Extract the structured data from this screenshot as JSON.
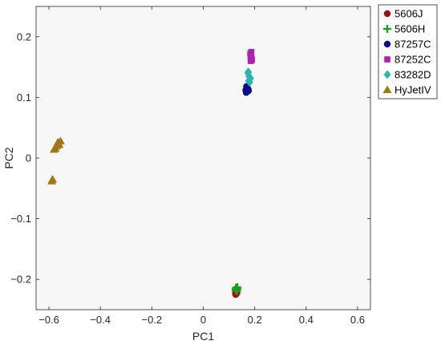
{
  "chart_data": {
    "type": "scatter",
    "title": "",
    "xlabel": "PC1",
    "ylabel": "PC2",
    "xlim": [
      -0.65,
      0.65
    ],
    "ylim": [
      -0.25,
      0.25
    ],
    "xticks": [
      -0.6,
      -0.4,
      -0.2,
      0,
      0.2,
      0.4,
      0.6
    ],
    "xtick_labels": [
      "−0.6",
      "−0.4",
      "−0.2",
      "0",
      "0.2",
      "0.4",
      "0.6"
    ],
    "yticks": [
      -0.2,
      -0.1,
      0,
      0.1,
      0.2
    ],
    "ytick_labels": [
      "−0.2",
      "−0.1",
      "0",
      "0.1",
      "0.2"
    ],
    "grid": false,
    "legend_position": "outside-top-right",
    "plot_background": "#f7f7f7",
    "series": [
      {
        "name": "5606J",
        "marker": "circle",
        "color": "#a01010",
        "points": [
          [
            0.125,
            -0.222
          ],
          [
            0.128,
            -0.224
          ],
          [
            0.13,
            -0.223
          ],
          [
            0.127,
            -0.221
          ],
          [
            0.131,
            -0.222
          ],
          [
            0.126,
            -0.225
          ],
          [
            0.129,
            -0.22
          ]
        ]
      },
      {
        "name": "5606H",
        "marker": "plus",
        "color": "#1e9e1e",
        "points": [
          [
            0.127,
            -0.214
          ],
          [
            0.13,
            -0.216
          ],
          [
            0.132,
            -0.213
          ],
          [
            0.128,
            -0.218
          ],
          [
            0.131,
            -0.219
          ],
          [
            0.126,
            -0.217
          ],
          [
            0.133,
            -0.215
          ]
        ]
      },
      {
        "name": "87257C",
        "marker": "circle",
        "color": "#0d0d8c",
        "points": [
          [
            0.165,
            0.112
          ],
          [
            0.17,
            0.115
          ],
          [
            0.173,
            0.11
          ],
          [
            0.168,
            0.118
          ],
          [
            0.175,
            0.113
          ],
          [
            0.167,
            0.108
          ],
          [
            0.172,
            0.116
          ],
          [
            0.176,
            0.111
          ]
        ]
      },
      {
        "name": "87252C",
        "marker": "square",
        "color": "#b020b0",
        "points": [
          [
            0.183,
            0.172
          ],
          [
            0.186,
            0.168
          ],
          [
            0.188,
            0.164
          ],
          [
            0.185,
            0.16
          ],
          [
            0.187,
            0.175
          ],
          [
            0.184,
            0.166
          ],
          [
            0.189,
            0.162
          ]
        ]
      },
      {
        "name": "83282D",
        "marker": "diamond",
        "color": "#29b5b0",
        "points": [
          [
            0.174,
            0.14
          ],
          [
            0.178,
            0.135
          ],
          [
            0.181,
            0.13
          ],
          [
            0.177,
            0.127
          ],
          [
            0.183,
            0.132
          ],
          [
            0.175,
            0.142
          ],
          [
            0.18,
            0.125
          ]
        ]
      },
      {
        "name": "HyJetIV",
        "marker": "triangle",
        "color": "#a07818",
        "points": [
          [
            -0.555,
            0.028
          ],
          [
            -0.56,
            0.022
          ],
          [
            -0.565,
            0.026
          ],
          [
            -0.57,
            0.02
          ],
          [
            -0.575,
            0.016
          ],
          [
            -0.58,
            0.014
          ],
          [
            -0.586,
            -0.035
          ],
          [
            -0.589,
            -0.038
          ]
        ]
      }
    ]
  }
}
